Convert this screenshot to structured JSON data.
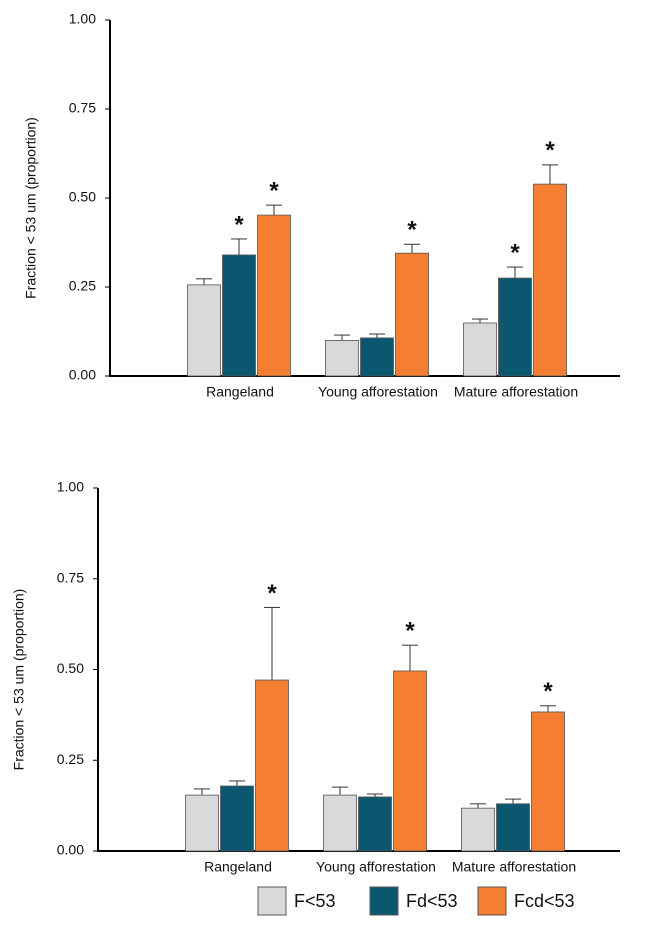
{
  "chart_data": [
    {
      "type": "bar",
      "y_label": "Fraction < 53 um (proportion)",
      "categories": [
        "Rangeland",
        "Young afforestation",
        "Mature afforestation"
      ],
      "ylim": [
        0,
        1
      ],
      "yticks": [
        {
          "value": 0,
          "label": "0.00"
        },
        {
          "value": 0.25,
          "label": "0.25"
        },
        {
          "value": 0.5,
          "label": "0.50"
        },
        {
          "value": 0.75,
          "label": "0.75"
        },
        {
          "value": 1,
          "label": "1.00"
        }
      ],
      "series": [
        {
          "name": "F<53",
          "color": "#d9d9d9",
          "values": [
            0.256,
            0.1,
            0.149
          ],
          "errors": [
            0.017,
            0.015,
            0.011
          ],
          "significance": [
            null,
            null,
            null
          ]
        },
        {
          "name": "Fd<53",
          "color": "#0b5770",
          "values": [
            0.34,
            0.107,
            0.275
          ],
          "errors": [
            0.045,
            0.011,
            0.031
          ],
          "significance": [
            "*",
            null,
            "*"
          ]
        },
        {
          "name": "Fcd<53",
          "color": "#f47f32",
          "values": [
            0.452,
            0.345,
            0.539
          ],
          "errors": [
            0.028,
            0.025,
            0.054
          ],
          "significance": [
            "*",
            "*",
            "*"
          ]
        }
      ]
    },
    {
      "type": "bar",
      "y_label": "Fraction < 53 um (proportion)",
      "categories": [
        "Rangeland",
        "Young afforestation",
        "Mature afforestation"
      ],
      "ylim": [
        0,
        1
      ],
      "yticks": [
        {
          "value": 0,
          "label": "0.00"
        },
        {
          "value": 0.25,
          "label": "0.25"
        },
        {
          "value": 0.5,
          "label": "0.50"
        },
        {
          "value": 0.75,
          "label": "0.75"
        },
        {
          "value": 1,
          "label": "1.00"
        }
      ],
      "series": [
        {
          "color": "#d9d9d9",
          "values": [
            0.154,
            0.154,
            0.118
          ],
          "errors": [
            0.017,
            0.022,
            0.012
          ],
          "significance": [
            null,
            null,
            null
          ]
        },
        {
          "color": "#0b5770",
          "values": [
            0.179,
            0.149,
            0.13
          ],
          "errors": [
            0.014,
            0.008,
            0.013
          ],
          "significance": [
            null,
            null,
            null
          ]
        },
        {
          "color": "#f47f32",
          "values": [
            0.471,
            0.496,
            0.383
          ],
          "errors": [
            0.2,
            0.071,
            0.017
          ],
          "significance": [
            "*",
            "*",
            "*"
          ]
        }
      ]
    }
  ]
}
